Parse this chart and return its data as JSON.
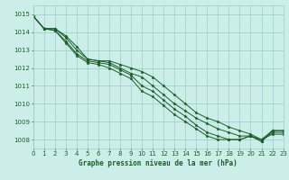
{
  "title": "Graphe pression niveau de la mer (hPa)",
  "background_color": "#cceee8",
  "grid_color": "#99cccc",
  "line_color": "#1a5c2a",
  "marker_color": "#1a5c2a",
  "xlim": [
    0,
    23
  ],
  "ylim": [
    1007.5,
    1015.5
  ],
  "yticks": [
    1008,
    1009,
    1010,
    1011,
    1012,
    1013,
    1014,
    1015
  ],
  "xticks": [
    0,
    1,
    2,
    3,
    4,
    5,
    6,
    7,
    8,
    9,
    10,
    11,
    12,
    13,
    14,
    15,
    16,
    17,
    18,
    19,
    20,
    21,
    22,
    23
  ],
  "series": [
    [
      1014.9,
      1014.2,
      1014.2,
      1013.8,
      1013.2,
      1012.5,
      1012.4,
      1012.4,
      1012.2,
      1012.0,
      1011.8,
      1011.5,
      1011.0,
      1010.5,
      1010.0,
      1009.5,
      1009.2,
      1009.0,
      1008.7,
      1008.5,
      1008.3,
      1008.0,
      1008.3,
      1008.3
    ],
    [
      1014.9,
      1014.2,
      1014.2,
      1013.7,
      1013.0,
      1012.5,
      1012.4,
      1012.3,
      1012.0,
      1011.7,
      1011.5,
      1011.0,
      1010.5,
      1010.0,
      1009.6,
      1009.2,
      1008.9,
      1008.6,
      1008.4,
      1008.2,
      1008.2,
      1008.0,
      1008.5,
      1008.5
    ],
    [
      1014.9,
      1014.2,
      1014.1,
      1013.5,
      1012.8,
      1012.4,
      1012.3,
      1012.2,
      1011.9,
      1011.6,
      1011.0,
      1010.7,
      1010.2,
      1009.7,
      1009.3,
      1008.8,
      1008.4,
      1008.2,
      1008.0,
      1008.0,
      1008.2,
      1007.9,
      1008.4,
      1008.4
    ],
    [
      1014.9,
      1014.2,
      1014.1,
      1013.4,
      1012.7,
      1012.3,
      1012.2,
      1012.0,
      1011.7,
      1011.4,
      1010.7,
      1010.4,
      1009.9,
      1009.4,
      1009.0,
      1008.6,
      1008.2,
      1008.0,
      1008.0,
      1008.0,
      1008.2,
      1007.9,
      1008.5,
      1008.5
    ]
  ]
}
